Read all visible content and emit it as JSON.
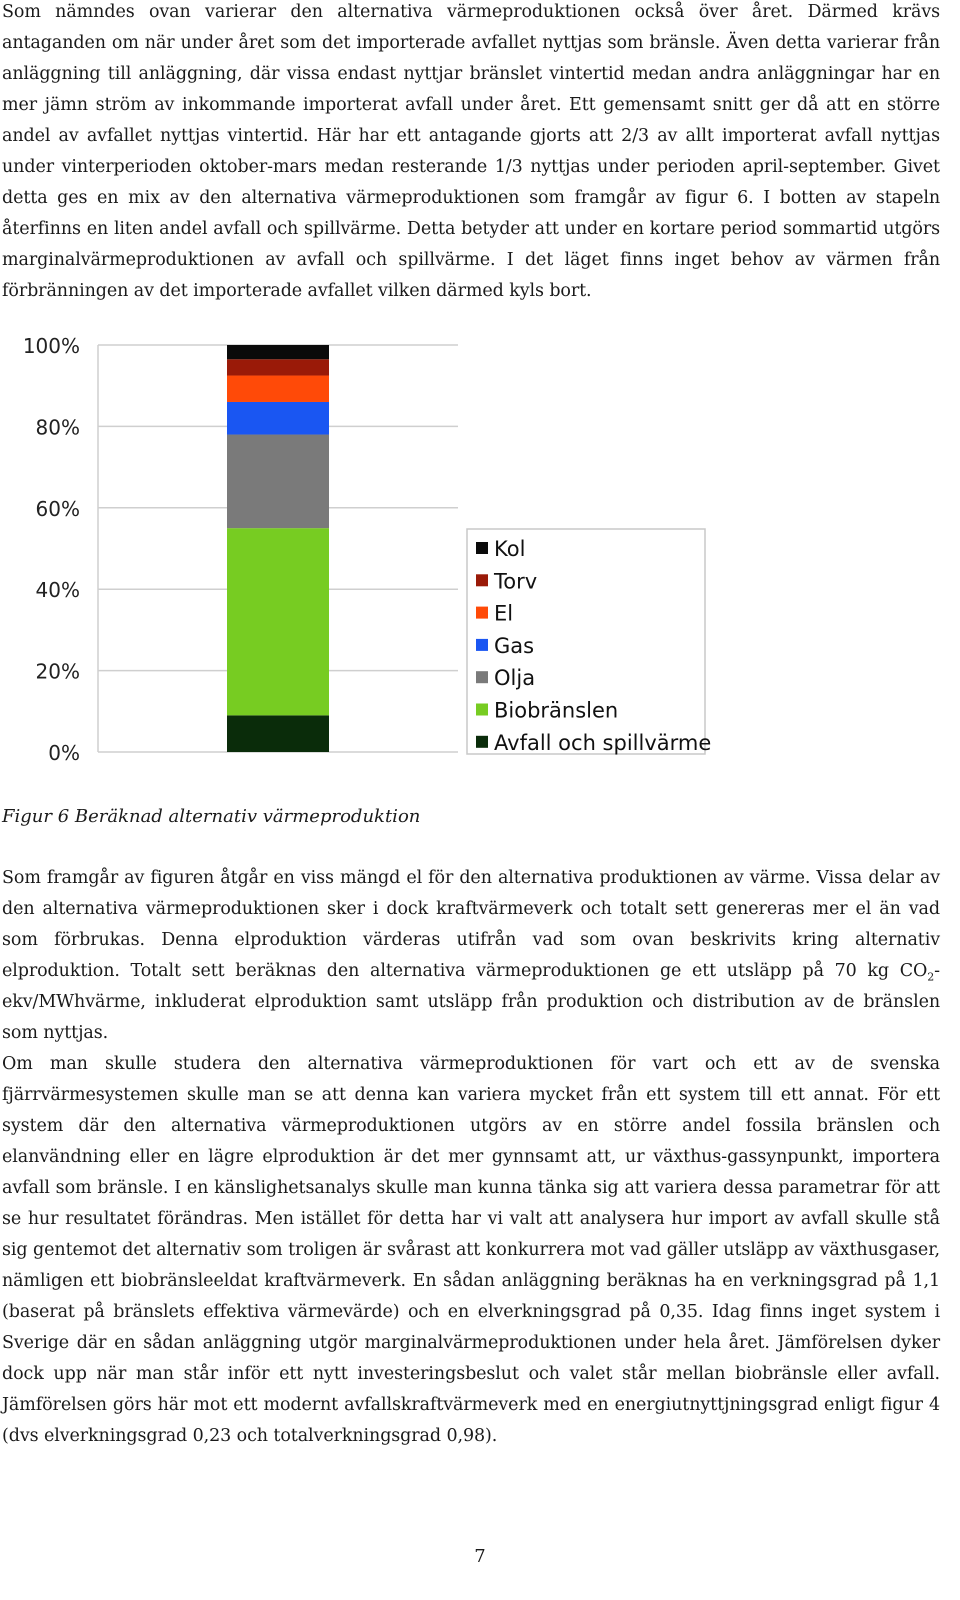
{
  "paragraphs": {
    "p1": "Som nämndes ovan varierar den alternativa värmeproduktionen också över året. Därmed krävs antaganden om när under året som det importerade avfallet nyttjas som bränsle. Även detta varierar från anläggning till anläggning, där vissa endast nyttjar bränslet vintertid medan andra anläggningar har en mer jämn ström av inkommande importerat avfall under året. Ett gemensamt snitt ger då att en större andel av avfallet nyttjas vintertid. Här har ett antagande gjorts att 2/3 av allt importerat avfall nyttjas under vinterperioden oktober-mars medan resterande 1/3 nyttjas under perioden april-september. Givet detta ges en mix av den alternativa värmeproduktionen som framgår av figur 6. I botten av stapeln återfinns en liten andel avfall och spillvärme. Detta betyder att under en kortare period sommartid utgörs marginalvärmeproduktionen av avfall och spillvärme. I det läget finns inget behov av värmen från förbränningen av det importerade avfallet vilken därmed kyls bort.",
    "p2_before": "Som framgår av figuren åtgår en viss mängd el för den alternativa produktionen av värme. Vissa delar av den alternativa värmeproduktionen sker i dock kraftvärmeverk och totalt sett genereras mer el än vad som förbrukas. Denna elproduktion värderas utifrån vad som ovan beskrivits kring alternativ elproduktion. Totalt sett beräknas den alternativa värmeproduktionen ge ett utsläpp på 70 kg CO",
    "p2_sub": "2",
    "p2_after": "-ekv/MWhvärme, inkluderat elproduktion samt utsläpp från produktion och distribution av de bränslen som nyttjas.",
    "p3": "Om man skulle studera den alternativa värmeproduktionen för vart och ett av de svenska fjärrvärmesystemen skulle man se att denna kan variera mycket från ett system till ett annat. För ett system där den alternativa värmeproduktionen utgörs av en större andel fossila bränslen och elanvändning eller en lägre elproduktion är det mer gynnsamt att, ur växthus-gassynpunkt, importera avfall som bränsle. I en känslighetsanalys skulle man kunna tänka sig att variera dessa parametrar för att se hur resultatet förändras. Men istället för detta har vi valt att analysera hur import av avfall skulle stå sig gentemot det alternativ som troligen är svårast att konkurrera mot vad gäller utsläpp av växthusgaser, nämligen ett biobränsleeldat kraftvärmeverk. En sådan anläggning beräknas ha en verkningsgrad på 1,1 (baserat på bränslets effektiva värmevärde) och en elverkningsgrad på 0,35. Idag finns inget system i Sverige där en sådan anläggning utgör marginalvärmeproduktionen under hela året. Jämförelsen dyker dock upp när man står inför ett nytt investeringsbeslut och valet står mellan biobränsle eller avfall. Jämförelsen görs här mot ett modernt avfallskraftvärmeverk med en energiutnyttjningsgrad enligt figur 4 (dvs elverkningsgrad 0,23 och totalverkningsgrad 0,98)."
  },
  "caption": "Figur 6 Beräknad alternativ värmeproduktion",
  "page_number": "7",
  "chart_data": {
    "type": "bar",
    "stacked": true,
    "categories": [
      ""
    ],
    "ylim": [
      0,
      100
    ],
    "yticks": [
      "0%",
      "20%",
      "40%",
      "60%",
      "80%",
      "100%"
    ],
    "series": [
      {
        "name": "Avfall och spillvärme",
        "values": [
          9
        ],
        "color": "#0a2c0a"
      },
      {
        "name": "Biobränslen",
        "values": [
          46
        ],
        "color": "#77cc22"
      },
      {
        "name": "Olja",
        "values": [
          23
        ],
        "color": "#7a7a7a"
      },
      {
        "name": "Gas",
        "values": [
          8
        ],
        "color": "#1a56f2"
      },
      {
        "name": "El",
        "values": [
          6.5
        ],
        "color": "#ff4a08"
      },
      {
        "name": "Torv",
        "values": [
          4
        ],
        "color": "#9a1a08"
      },
      {
        "name": "Kol",
        "values": [
          3.5
        ],
        "color": "#0a0a0a"
      }
    ],
    "legend_order": [
      "Kol",
      "Torv",
      "El",
      "Gas",
      "Olja",
      "Biobränslen",
      "Avfall och spillvärme"
    ],
    "legend_position": "right",
    "grid": true
  }
}
